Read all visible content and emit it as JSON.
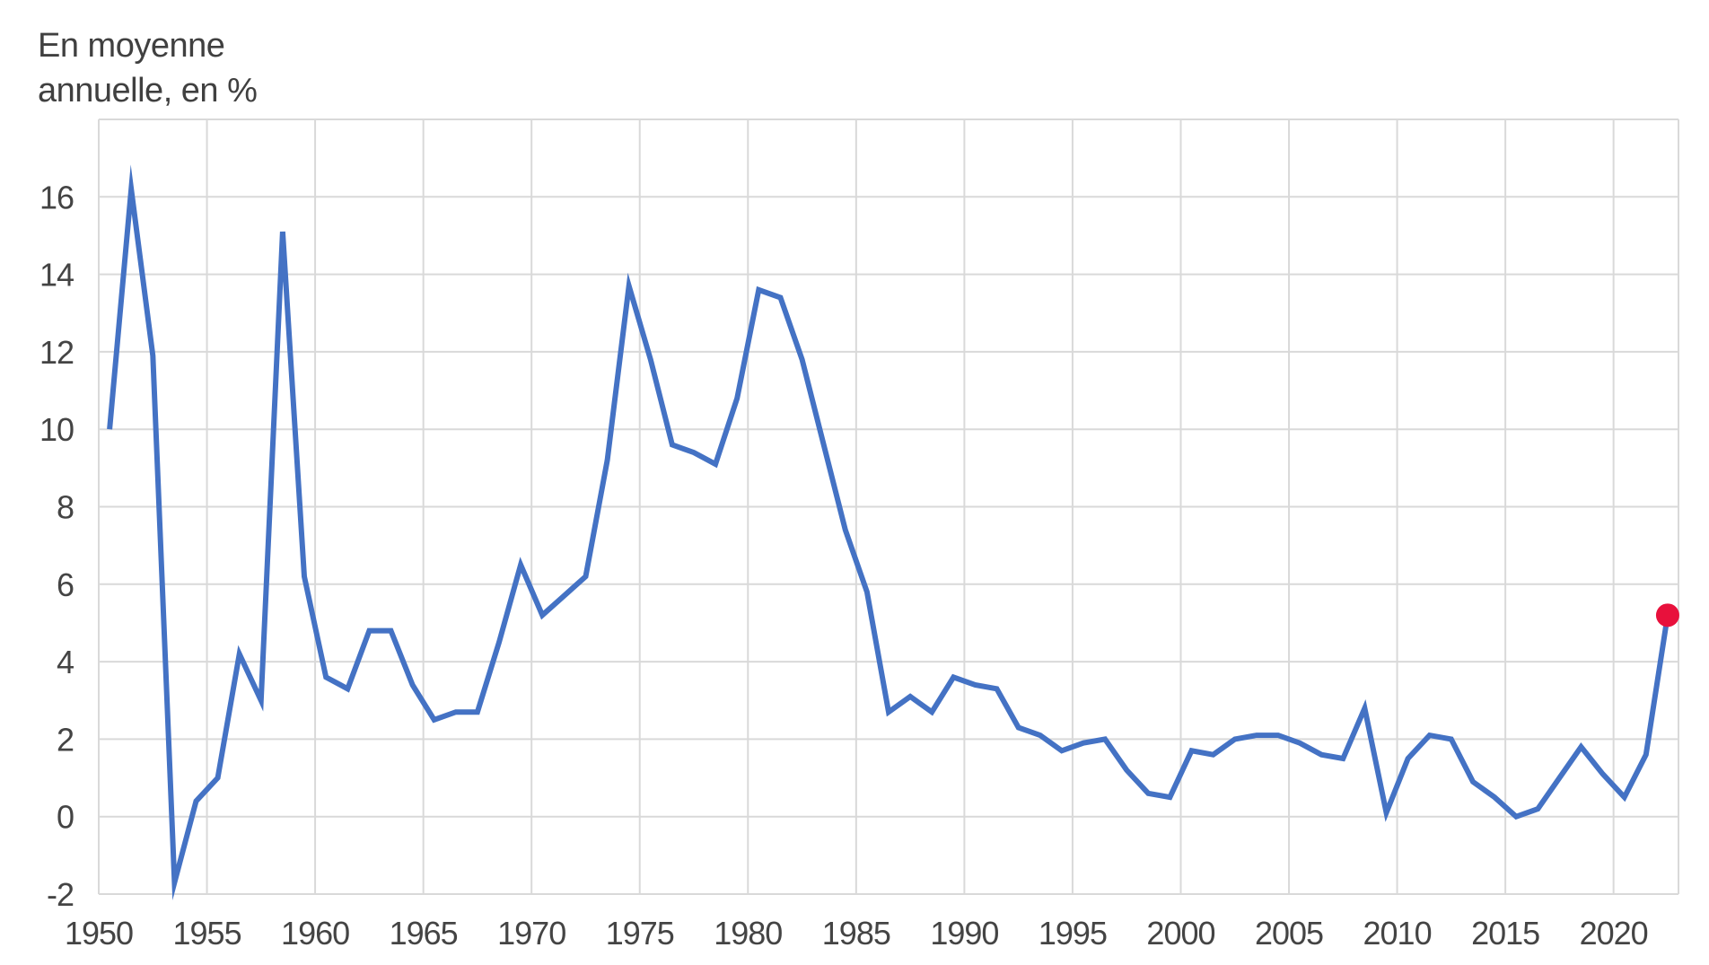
{
  "chart_data": {
    "type": "line",
    "title": "",
    "ylabel": "En moyenne\nannuelle, en %",
    "xlabel": "",
    "xlim": [
      1950,
      2023
    ],
    "ylim": [
      -2,
      18
    ],
    "yticks": [
      -2,
      0,
      2,
      4,
      6,
      8,
      10,
      12,
      14,
      16
    ],
    "xticks": [
      1950,
      1955,
      1960,
      1965,
      1970,
      1975,
      1980,
      1985,
      1990,
      1995,
      2000,
      2005,
      2010,
      2015,
      2020
    ],
    "grid": true,
    "line_color": "#4472C4",
    "highlight_color": "#E8113C",
    "highlight_last_point": true,
    "series": [
      {
        "x": [
          1950.5,
          1951.5,
          1952.5,
          1953.5,
          1954.5,
          1955.5,
          1956.5,
          1957.5,
          1958.5,
          1959.5,
          1960.5,
          1961.5,
          1962.5,
          1963.5,
          1964.5,
          1965.5,
          1966.5,
          1967.5,
          1968.5,
          1969.5,
          1970.5,
          1971.5,
          1972.5,
          1973.5,
          1974.5,
          1975.5,
          1976.5,
          1977.5,
          1978.5,
          1979.5,
          1980.5,
          1981.5,
          1982.5,
          1983.5,
          1984.5,
          1985.5,
          1986.5,
          1987.5,
          1988.5,
          1989.5,
          1990.5,
          1991.5,
          1992.5,
          1993.5,
          1994.5,
          1995.5,
          1996.5,
          1997.5,
          1998.5,
          1999.5,
          2000.5,
          2001.5,
          2002.5,
          2003.5,
          2004.5,
          2005.5,
          2006.5,
          2007.5,
          2008.5,
          2009.5,
          2010.5,
          2011.5,
          2012.5,
          2013.5,
          2014.5,
          2015.5,
          2016.5,
          2017.5,
          2018.5,
          2019.5,
          2020.5,
          2021.5,
          2022.5
        ],
        "values": [
          10.0,
          16.2,
          11.9,
          -1.7,
          0.4,
          1.0,
          4.2,
          3.0,
          15.1,
          6.2,
          3.6,
          3.3,
          4.8,
          4.8,
          3.4,
          2.5,
          2.7,
          2.7,
          4.5,
          6.5,
          5.2,
          5.7,
          6.2,
          9.2,
          13.7,
          11.8,
          9.6,
          9.4,
          9.1,
          10.8,
          13.6,
          13.4,
          11.8,
          9.6,
          7.4,
          5.8,
          2.7,
          3.1,
          2.7,
          3.6,
          3.4,
          3.3,
          2.3,
          2.1,
          1.7,
          1.9,
          2.0,
          1.2,
          0.6,
          0.5,
          1.7,
          1.6,
          2.0,
          2.1,
          2.1,
          1.9,
          1.6,
          1.5,
          2.8,
          0.1,
          1.5,
          2.1,
          2.0,
          0.9,
          0.5,
          0.0,
          0.2,
          1.0,
          1.8,
          1.1,
          0.5,
          1.6,
          5.2
        ]
      }
    ]
  }
}
